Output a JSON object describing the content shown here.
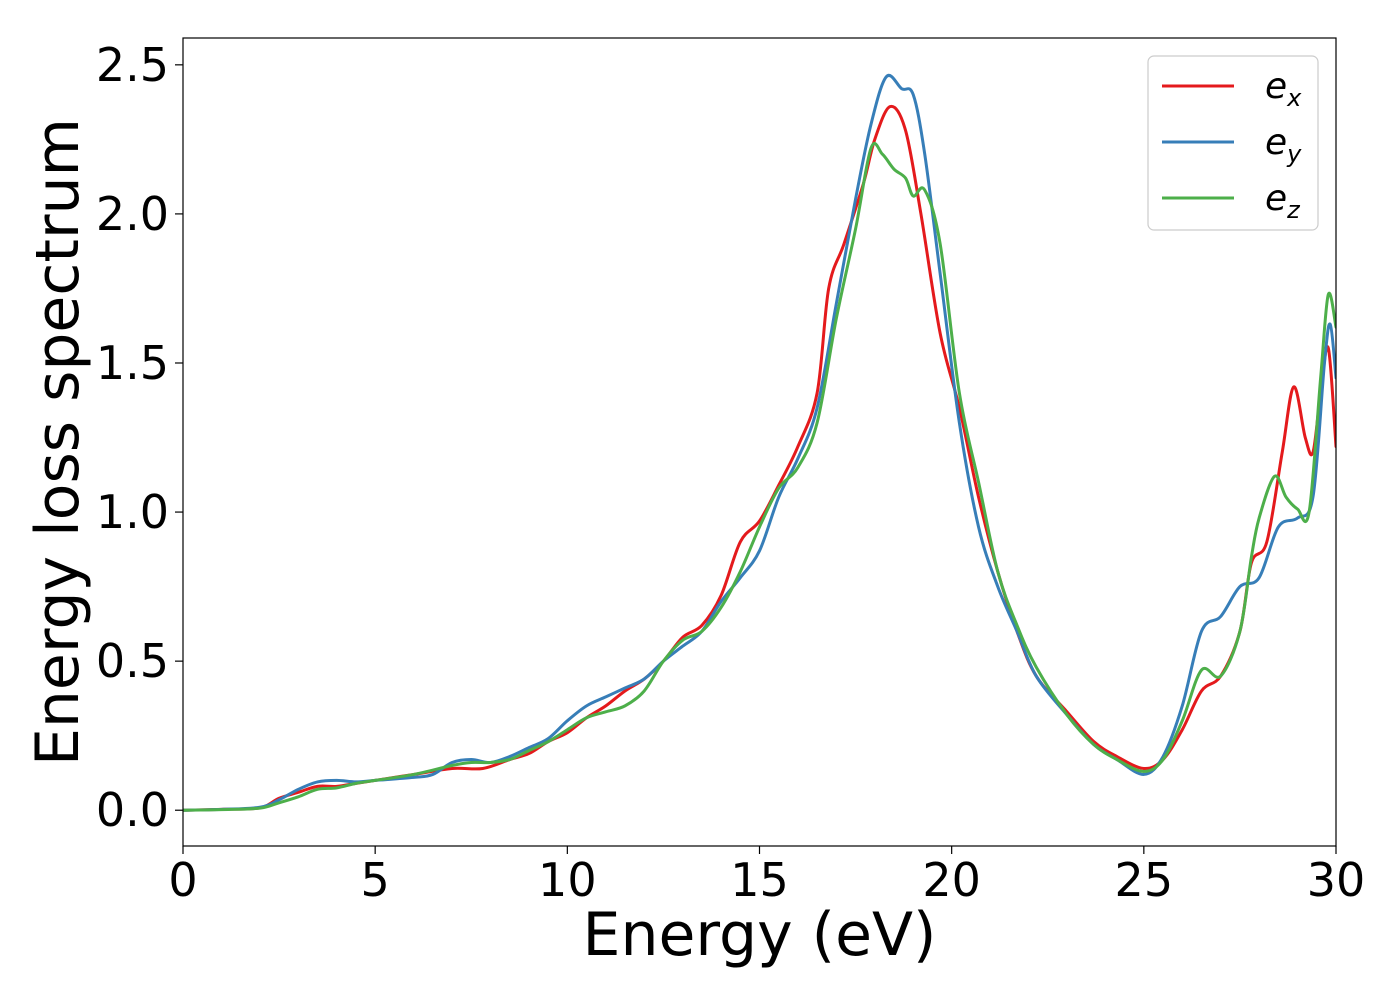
{
  "chart_data": {
    "type": "line",
    "title": "",
    "xlabel": "Energy (eV)",
    "ylabel": "Energy loss spectrum",
    "xlim": [
      0,
      30
    ],
    "ylim": [
      -0.12,
      2.59
    ],
    "xticks": [
      0,
      5,
      10,
      15,
      20,
      25,
      30
    ],
    "xtick_labels": [
      "0",
      "5",
      "10",
      "15",
      "20",
      "25",
      "30"
    ],
    "yticks": [
      0.0,
      0.5,
      1.0,
      1.5,
      2.0,
      2.5
    ],
    "ytick_labels": [
      "0.0",
      "0.5",
      "1.0",
      "1.5",
      "2.0",
      "2.5"
    ],
    "grid": false,
    "legend_position": "top-right",
    "series": [
      {
        "name": "e_x",
        "label_main": "e",
        "label_sub": "x",
        "color": "#e41a1c",
        "points": [
          [
            0,
            0
          ],
          [
            1,
            0.003
          ],
          [
            2,
            0.008
          ],
          [
            2.5,
            0.04
          ],
          [
            3,
            0.06
          ],
          [
            3.5,
            0.08
          ],
          [
            4,
            0.08
          ],
          [
            4.5,
            0.09
          ],
          [
            5,
            0.1
          ],
          [
            6,
            0.12
          ],
          [
            7,
            0.14
          ],
          [
            7.8,
            0.14
          ],
          [
            8.5,
            0.17
          ],
          [
            9,
            0.19
          ],
          [
            9.5,
            0.23
          ],
          [
            10,
            0.26
          ],
          [
            10.5,
            0.31
          ],
          [
            11,
            0.35
          ],
          [
            11.5,
            0.4
          ],
          [
            12,
            0.44
          ],
          [
            12.5,
            0.5
          ],
          [
            13,
            0.58
          ],
          [
            13.5,
            0.62
          ],
          [
            14,
            0.72
          ],
          [
            14.5,
            0.9
          ],
          [
            15,
            0.97
          ],
          [
            15.5,
            1.09
          ],
          [
            16,
            1.22
          ],
          [
            16.5,
            1.4
          ],
          [
            16.8,
            1.75
          ],
          [
            17.2,
            1.9
          ],
          [
            17.7,
            2.1
          ],
          [
            18.0,
            2.25
          ],
          [
            18.4,
            2.36
          ],
          [
            18.8,
            2.28
          ],
          [
            19.2,
            2.0
          ],
          [
            19.7,
            1.6
          ],
          [
            20.2,
            1.35
          ],
          [
            20.7,
            1.05
          ],
          [
            21.2,
            0.8
          ],
          [
            21.7,
            0.6
          ],
          [
            22.2,
            0.45
          ],
          [
            23.0,
            0.33
          ],
          [
            23.7,
            0.23
          ],
          [
            24.3,
            0.18
          ],
          [
            25.0,
            0.14
          ],
          [
            25.5,
            0.17
          ],
          [
            26.0,
            0.27
          ],
          [
            26.5,
            0.4
          ],
          [
            27.0,
            0.45
          ],
          [
            27.5,
            0.6
          ],
          [
            27.8,
            0.83
          ],
          [
            28.2,
            0.9
          ],
          [
            28.6,
            1.2
          ],
          [
            28.9,
            1.42
          ],
          [
            29.2,
            1.25
          ],
          [
            29.4,
            1.2
          ],
          [
            29.6,
            1.4
          ],
          [
            29.8,
            1.55
          ],
          [
            30,
            1.22
          ]
        ]
      },
      {
        "name": "e_y",
        "label_main": "e",
        "label_sub": "y",
        "color": "#377eb8",
        "points": [
          [
            0,
            0
          ],
          [
            1,
            0.003
          ],
          [
            2,
            0.01
          ],
          [
            2.5,
            0.035
          ],
          [
            3,
            0.07
          ],
          [
            3.5,
            0.095
          ],
          [
            4,
            0.1
          ],
          [
            4.5,
            0.095
          ],
          [
            5,
            0.1
          ],
          [
            6,
            0.11
          ],
          [
            6.5,
            0.12
          ],
          [
            7,
            0.16
          ],
          [
            7.5,
            0.17
          ],
          [
            8,
            0.16
          ],
          [
            8.5,
            0.18
          ],
          [
            9,
            0.21
          ],
          [
            9.5,
            0.24
          ],
          [
            10,
            0.3
          ],
          [
            10.5,
            0.35
          ],
          [
            11,
            0.38
          ],
          [
            11.5,
            0.41
          ],
          [
            12,
            0.44
          ],
          [
            12.5,
            0.5
          ],
          [
            13,
            0.55
          ],
          [
            13.5,
            0.6
          ],
          [
            14,
            0.7
          ],
          [
            14.5,
            0.78
          ],
          [
            15,
            0.87
          ],
          [
            15.5,
            1.05
          ],
          [
            16,
            1.18
          ],
          [
            16.5,
            1.35
          ],
          [
            17,
            1.7
          ],
          [
            17.5,
            2.05
          ],
          [
            17.9,
            2.3
          ],
          [
            18.3,
            2.46
          ],
          [
            18.7,
            2.42
          ],
          [
            19.0,
            2.4
          ],
          [
            19.3,
            2.2
          ],
          [
            19.7,
            1.8
          ],
          [
            20.2,
            1.3
          ],
          [
            20.7,
            0.95
          ],
          [
            21.2,
            0.75
          ],
          [
            21.7,
            0.6
          ],
          [
            22.2,
            0.45
          ],
          [
            23.0,
            0.32
          ],
          [
            23.7,
            0.22
          ],
          [
            24.3,
            0.17
          ],
          [
            25.0,
            0.12
          ],
          [
            25.5,
            0.18
          ],
          [
            26.0,
            0.35
          ],
          [
            26.5,
            0.6
          ],
          [
            27.0,
            0.65
          ],
          [
            27.5,
            0.75
          ],
          [
            28.0,
            0.78
          ],
          [
            28.5,
            0.95
          ],
          [
            29.0,
            0.98
          ],
          [
            29.4,
            1.05
          ],
          [
            29.7,
            1.5
          ],
          [
            29.85,
            1.63
          ],
          [
            30,
            1.45
          ]
        ]
      },
      {
        "name": "e_z",
        "label_main": "e",
        "label_sub": "z",
        "color": "#4daf4a",
        "points": [
          [
            0,
            0
          ],
          [
            1,
            0.002
          ],
          [
            2,
            0.007
          ],
          [
            2.5,
            0.025
          ],
          [
            3,
            0.045
          ],
          [
            3.5,
            0.07
          ],
          [
            4,
            0.075
          ],
          [
            4.5,
            0.09
          ],
          [
            5,
            0.1
          ],
          [
            6,
            0.12
          ],
          [
            7,
            0.15
          ],
          [
            7.5,
            0.16
          ],
          [
            8,
            0.16
          ],
          [
            8.5,
            0.17
          ],
          [
            9,
            0.2
          ],
          [
            9.5,
            0.23
          ],
          [
            10,
            0.27
          ],
          [
            10.5,
            0.31
          ],
          [
            11,
            0.33
          ],
          [
            11.5,
            0.35
          ],
          [
            12,
            0.4
          ],
          [
            12.5,
            0.5
          ],
          [
            13,
            0.57
          ],
          [
            13.5,
            0.6
          ],
          [
            14,
            0.68
          ],
          [
            14.5,
            0.8
          ],
          [
            15,
            0.95
          ],
          [
            15.5,
            1.08
          ],
          [
            16,
            1.15
          ],
          [
            16.5,
            1.3
          ],
          [
            17,
            1.65
          ],
          [
            17.5,
            1.95
          ],
          [
            17.9,
            2.22
          ],
          [
            18.2,
            2.2
          ],
          [
            18.5,
            2.15
          ],
          [
            18.8,
            2.12
          ],
          [
            19.0,
            2.06
          ],
          [
            19.3,
            2.08
          ],
          [
            19.7,
            1.9
          ],
          [
            20.2,
            1.4
          ],
          [
            20.7,
            1.1
          ],
          [
            21.2,
            0.8
          ],
          [
            21.7,
            0.62
          ],
          [
            22.2,
            0.48
          ],
          [
            23.0,
            0.32
          ],
          [
            23.7,
            0.22
          ],
          [
            24.3,
            0.17
          ],
          [
            25.0,
            0.13
          ],
          [
            25.5,
            0.17
          ],
          [
            26.0,
            0.3
          ],
          [
            26.5,
            0.47
          ],
          [
            27.0,
            0.45
          ],
          [
            27.5,
            0.6
          ],
          [
            27.8,
            0.85
          ],
          [
            28.0,
            0.98
          ],
          [
            28.4,
            1.12
          ],
          [
            28.7,
            1.05
          ],
          [
            29.0,
            1.01
          ],
          [
            29.3,
            1.0
          ],
          [
            29.6,
            1.45
          ],
          [
            29.8,
            1.73
          ],
          [
            30,
            1.62
          ]
        ]
      }
    ]
  }
}
